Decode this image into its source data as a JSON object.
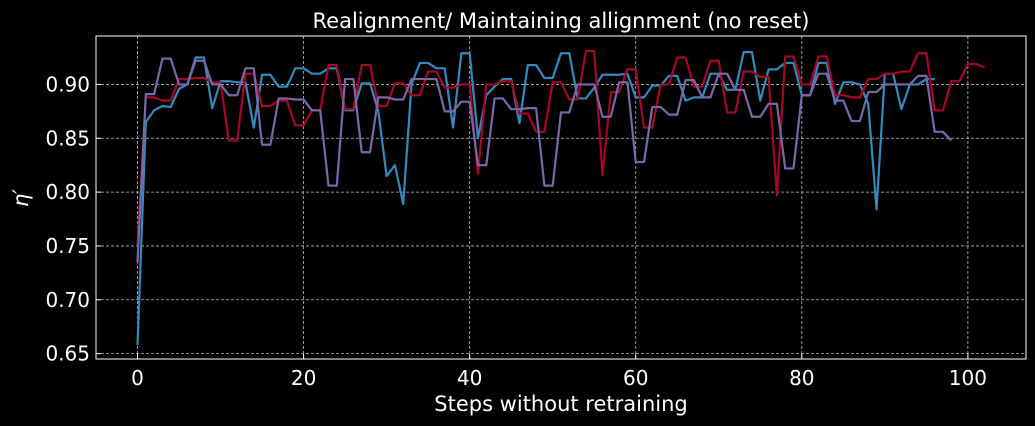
{
  "chart_data": {
    "type": "line",
    "title": "Realignment/ Maintaining allignment (no reset)",
    "xlabel": "Steps without retraining",
    "ylabel": "η′",
    "xlim": [
      -5,
      107
    ],
    "ylim": [
      0.645,
      0.945
    ],
    "x_ticks": [
      0,
      20,
      40,
      60,
      80,
      100
    ],
    "y_ticks": [
      0.65,
      0.7,
      0.75,
      0.8,
      0.85,
      0.9
    ],
    "x_tick_labels": [
      "0",
      "20",
      "40",
      "60",
      "80",
      "100"
    ],
    "y_tick_labels": [
      "0.65",
      "0.70",
      "0.75",
      "0.80",
      "0.85",
      "0.90"
    ],
    "grid": true,
    "colors": {
      "background": "#000000",
      "axes_edge": "#ffffff",
      "grid": "#bbbbbb",
      "text": "#ffffff"
    },
    "series": [
      {
        "color": "#348ABD",
        "values": [
          0.658,
          0.865,
          0.876,
          0.88,
          0.879,
          0.896,
          0.9,
          0.925,
          0.925,
          0.878,
          0.903,
          0.903,
          0.902,
          0.902,
          0.86,
          0.909,
          0.909,
          0.898,
          0.898,
          0.915,
          0.915,
          0.91,
          0.91,
          0.915,
          0.915,
          0.876,
          0.876,
          0.901,
          0.901,
          0.875,
          0.815,
          0.825,
          0.789,
          0.9,
          0.92,
          0.92,
          0.915,
          0.915,
          0.86,
          0.929,
          0.929,
          0.85,
          0.89,
          0.898,
          0.905,
          0.905,
          0.864,
          0.918,
          0.918,
          0.906,
          0.906,
          0.929,
          0.929,
          0.887,
          0.887,
          0.897,
          0.909,
          0.909,
          0.909,
          0.91,
          0.888,
          0.888,
          0.899,
          0.899,
          0.908,
          0.908,
          0.885,
          0.888,
          0.888,
          0.91,
          0.91,
          0.895,
          0.895,
          0.93,
          0.93,
          0.885,
          0.914,
          0.914,
          0.92,
          0.92,
          0.89,
          0.89,
          0.92,
          0.92,
          0.882,
          0.902,
          0.902,
          0.9,
          0.882,
          0.784,
          0.91,
          0.91,
          0.877,
          0.9,
          0.9,
          0.905,
          0.905
        ]
      },
      {
        "color": "#A60628",
        "values": [
          0.75,
          0.888,
          0.888,
          0.885,
          0.885,
          0.905,
          0.905,
          0.906,
          0.906,
          0.902,
          0.902,
          0.848,
          0.848,
          0.91,
          0.91,
          0.88,
          0.88,
          0.885,
          0.885,
          0.862,
          0.862,
          0.876,
          0.876,
          0.918,
          0.918,
          0.877,
          0.877,
          0.918,
          0.918,
          0.88,
          0.88,
          0.901,
          0.901,
          0.89,
          0.89,
          0.912,
          0.912,
          0.897,
          0.897,
          0.9,
          0.9,
          0.817,
          0.9,
          0.9,
          0.903,
          0.903,
          0.873,
          0.873,
          0.856,
          0.856,
          0.902,
          0.902,
          0.886,
          0.886,
          0.931,
          0.931,
          0.816,
          0.893,
          0.893,
          0.914,
          0.914,
          0.86,
          0.86,
          0.9,
          0.9,
          0.925,
          0.925,
          0.898,
          0.898,
          0.922,
          0.922,
          0.874,
          0.874,
          0.912,
          0.912,
          0.907,
          0.907,
          0.797,
          0.926,
          0.926,
          0.9,
          0.9,
          0.926,
          0.926,
          0.89,
          0.89,
          0.888,
          0.888,
          0.905,
          0.905,
          0.91,
          0.91,
          0.912,
          0.912,
          0.929,
          0.929,
          0.876,
          0.876,
          0.903,
          0.903,
          0.919,
          0.919,
          0.916
        ]
      },
      {
        "color": "#7A68A6",
        "values": [
          0.735,
          0.891,
          0.891,
          0.924,
          0.924,
          0.9,
          0.9,
          0.922,
          0.922,
          0.9,
          0.9,
          0.89,
          0.89,
          0.915,
          0.915,
          0.844,
          0.844,
          0.887,
          0.887,
          0.886,
          0.886,
          0.876,
          0.876,
          0.806,
          0.806,
          0.905,
          0.905,
          0.837,
          0.837,
          0.888,
          0.888,
          0.886,
          0.886,
          0.905,
          0.905,
          0.905,
          0.905,
          0.875,
          0.875,
          0.884,
          0.884,
          0.825,
          0.825,
          0.887,
          0.887,
          0.877,
          0.877,
          0.878,
          0.878,
          0.806,
          0.806,
          0.874,
          0.874,
          0.9,
          0.9,
          0.9,
          0.87,
          0.87,
          0.902,
          0.902,
          0.828,
          0.828,
          0.879,
          0.879,
          0.872,
          0.872,
          0.904,
          0.904,
          0.888,
          0.888,
          0.91,
          0.91,
          0.895,
          0.895,
          0.87,
          0.87,
          0.882,
          0.882,
          0.822,
          0.822,
          0.89,
          0.89,
          0.91,
          0.91,
          0.885,
          0.885,
          0.866,
          0.866,
          0.893,
          0.893,
          0.9,
          0.9,
          0.9,
          0.9,
          0.908,
          0.908,
          0.856,
          0.856,
          0.848
        ]
      }
    ]
  }
}
